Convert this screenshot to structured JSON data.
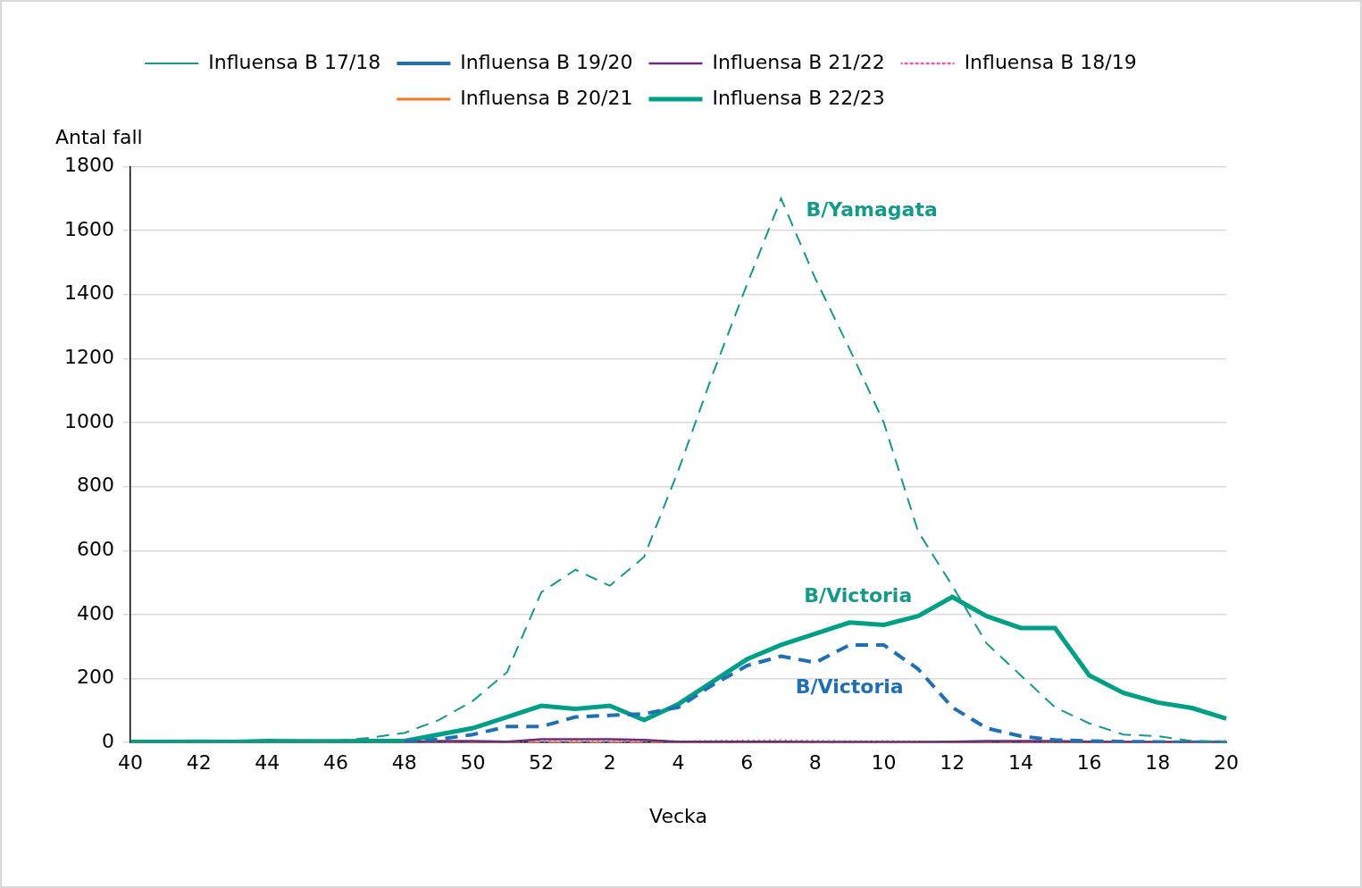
{
  "chart_data": {
    "type": "line",
    "x_label": "Vecka",
    "y_label": "Antal fall",
    "categories": [
      "40",
      null,
      "42",
      null,
      "44",
      null,
      "46",
      null,
      "48",
      null,
      "50",
      null,
      "52",
      null,
      "2",
      null,
      "4",
      null,
      "6",
      null,
      "8",
      null,
      "10",
      null,
      "12",
      null,
      "14",
      null,
      "16",
      null,
      "18",
      null,
      "20"
    ],
    "ylim": [
      0,
      1800
    ],
    "yticks": [
      0,
      200,
      400,
      600,
      800,
      1000,
      1200,
      1400,
      1600,
      1800
    ],
    "grid": true,
    "legend": "top",
    "series": [
      {
        "name": "Influensa B 17/18",
        "color": "#16998a",
        "line_style": "dashed",
        "values": [
          2,
          2,
          3,
          2,
          4,
          5,
          6,
          15,
          30,
          70,
          130,
          220,
          470,
          540,
          490,
          580,
          850,
          1150,
          1430,
          1700,
          1450,
          1230,
          1000,
          660,
          490,
          310,
          210,
          110,
          60,
          25,
          20,
          5,
          3
        ]
      },
      {
        "name": "Influensa B 19/20",
        "color": "#1f6fb5",
        "line_style": "dashed",
        "values": [
          null,
          null,
          null,
          null,
          null,
          null,
          null,
          null,
          3,
          10,
          25,
          50,
          50,
          80,
          85,
          90,
          110,
          180,
          240,
          270,
          250,
          305,
          305,
          230,
          110,
          45,
          20,
          8,
          5,
          3,
          2,
          1,
          1
        ]
      },
      {
        "name": "Influensa B 21/22",
        "color": "#6b2d7b",
        "line_style": "solid",
        "values": [
          null,
          null,
          null,
          null,
          null,
          null,
          null,
          null,
          2,
          5,
          5,
          3,
          10,
          10,
          10,
          8,
          3,
          3,
          3,
          3,
          2,
          2,
          2,
          2,
          3,
          5,
          5,
          5,
          3,
          2,
          2,
          2,
          2
        ]
      },
      {
        "name": "Influensa B 18/19",
        "color": "#e060b0",
        "line_style": "dotted",
        "values": [
          null,
          null,
          null,
          null,
          null,
          null,
          null,
          null,
          1,
          2,
          2,
          2,
          3,
          3,
          3,
          3,
          3,
          5,
          6,
          7,
          5,
          4,
          4,
          3,
          3,
          3,
          3,
          3,
          2,
          2,
          1,
          1,
          1
        ]
      },
      {
        "name": "Influensa B 20/21",
        "color": "#f07820",
        "line_style": "dashed",
        "values": [
          null,
          null,
          null,
          null,
          null,
          null,
          null,
          null,
          0,
          0,
          0,
          0,
          0,
          0,
          0,
          0,
          0,
          0,
          0,
          0,
          0,
          0,
          0,
          0,
          0,
          0,
          0,
          0,
          0,
          0,
          0,
          0,
          0
        ]
      },
      {
        "name": "Influensa B 22/23",
        "color": "#00a087",
        "line_style": "solid",
        "values": [
          2,
          2,
          3,
          2,
          5,
          4,
          4,
          5,
          5,
          25,
          45,
          80,
          115,
          105,
          115,
          70,
          120,
          190,
          260,
          305,
          340,
          375,
          368,
          395,
          455,
          395,
          358,
          358,
          210,
          155,
          125,
          108,
          75
        ]
      }
    ],
    "annotations": [
      {
        "text": "B/Yamagata",
        "color": "#16998a",
        "series": "Influensa B 17/18"
      },
      {
        "text": "B/Victoria",
        "color": "#16998a",
        "series": "Influensa B 22/23"
      },
      {
        "text": "B/Victoria",
        "color": "#1f6fb5",
        "series": "Influensa B 19/20"
      }
    ]
  }
}
